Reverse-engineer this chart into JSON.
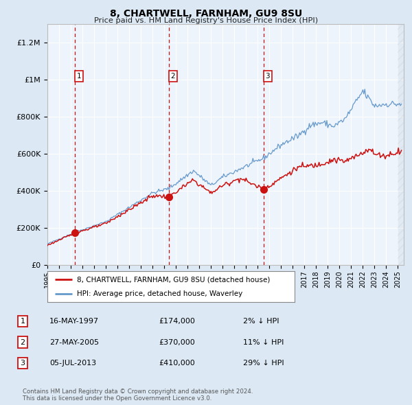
{
  "title": "8, CHARTWELL, FARNHAM, GU9 8SU",
  "subtitle": "Price paid vs. HM Land Registry's House Price Index (HPI)",
  "price_paid": [
    {
      "date": 1997.37,
      "price": 174000,
      "label": "1"
    },
    {
      "date": 2005.41,
      "price": 370000,
      "label": "2"
    },
    {
      "date": 2013.51,
      "price": 410000,
      "label": "3"
    }
  ],
  "vlines": [
    1997.37,
    2005.41,
    2013.51
  ],
  "legend_line1": "8, CHARTWELL, FARNHAM, GU9 8SU (detached house)",
  "legend_line2": "HPI: Average price, detached house, Waverley",
  "table": [
    {
      "num": "1",
      "date": "16-MAY-1997",
      "price": "£174,000",
      "pct": "2% ↓ HPI"
    },
    {
      "num": "2",
      "date": "27-MAY-2005",
      "price": "£370,000",
      "pct": "11% ↓ HPI"
    },
    {
      "num": "3",
      "date": "05-JUL-2013",
      "price": "£410,000",
      "pct": "29% ↓ HPI"
    }
  ],
  "footer": "Contains HM Land Registry data © Crown copyright and database right 2024.\nThis data is licensed under the Open Government Licence v3.0.",
  "hpi_color": "#6699cc",
  "price_color": "#cc1111",
  "bg_color": "#dce9f5",
  "plot_bg": "#eef4fb",
  "grid_color": "#ffffff",
  "ylim": [
    0,
    1300000
  ],
  "xlim_start": 1995.0,
  "xlim_end": 2025.5,
  "yticks": [
    0,
    200000,
    400000,
    600000,
    800000,
    1000000,
    1200000
  ],
  "ylabels": [
    "£0",
    "£200K",
    "£400K",
    "£600K",
    "£800K",
    "£1M",
    "£1.2M"
  ]
}
